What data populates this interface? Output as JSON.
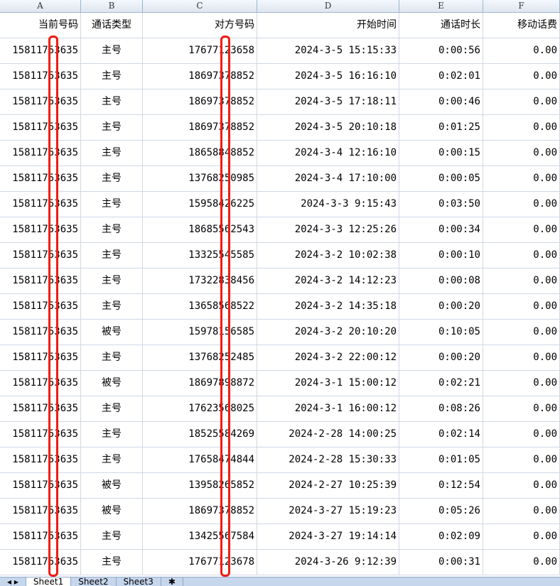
{
  "columns": [
    "A",
    "B",
    "C",
    "D",
    "E",
    "F"
  ],
  "headers": [
    "当前号码",
    "通话类型",
    "对方号码",
    "开始时间",
    "通话时长",
    "移动话费"
  ],
  "rows": [
    [
      "15811753635",
      "主号",
      "17677123658",
      "2024-3-5 15:15:33",
      "0:00:56",
      "0.00"
    ],
    [
      "15811753635",
      "主号",
      "18697378852",
      "2024-3-5 16:16:10",
      "0:02:01",
      "0.00"
    ],
    [
      "15811753635",
      "主号",
      "18697378852",
      "2024-3-5 17:18:11",
      "0:00:46",
      "0.00"
    ],
    [
      "15811753635",
      "主号",
      "18697378852",
      "2024-3-5 20:10:18",
      "0:01:25",
      "0.00"
    ],
    [
      "15811753635",
      "主号",
      "18658848852",
      "2024-3-4 12:16:10",
      "0:00:15",
      "0.00"
    ],
    [
      "15811753635",
      "主号",
      "13768250985",
      "2024-3-4 17:10:00",
      "0:00:05",
      "0.00"
    ],
    [
      "15811753635",
      "主号",
      "15958426225",
      "2024-3-3 9:15:43",
      "0:03:50",
      "0.00"
    ],
    [
      "15811753635",
      "主号",
      "18685562543",
      "2024-3-3 12:25:26",
      "0:00:34",
      "0.00"
    ],
    [
      "15811753635",
      "主号",
      "13325545585",
      "2024-3-2 10:02:38",
      "0:00:10",
      "0.00"
    ],
    [
      "15811753635",
      "主号",
      "17322838456",
      "2024-3-2 14:12:23",
      "0:00:08",
      "0.00"
    ],
    [
      "15811753635",
      "主号",
      "13658568522",
      "2024-3-2 14:35:18",
      "0:00:20",
      "0.00"
    ],
    [
      "15811753635",
      "被号",
      "15978156585",
      "2024-3-2 20:10:20",
      "0:10:05",
      "0.00"
    ],
    [
      "15811753635",
      "主号",
      "13768252485",
      "2024-3-2 22:00:12",
      "0:00:20",
      "0.00"
    ],
    [
      "15811753635",
      "被号",
      "18697898872",
      "2024-3-1 15:00:12",
      "0:02:21",
      "0.00"
    ],
    [
      "15811753635",
      "主号",
      "17623568025",
      "2024-3-1 16:00:12",
      "0:08:26",
      "0.00"
    ],
    [
      "15811753635",
      "主号",
      "18525584269",
      "2024-2-28 14:00:25",
      "0:02:14",
      "0.00"
    ],
    [
      "15811753635",
      "主号",
      "17658474844",
      "2024-2-28 15:30:33",
      "0:01:05",
      "0.00"
    ],
    [
      "15811753635",
      "被号",
      "13958265852",
      "2024-2-27 10:25:39",
      "0:12:54",
      "0.00"
    ],
    [
      "15811753635",
      "被号",
      "18697378852",
      "2024-3-27 15:19:23",
      "0:05:26",
      "0.00"
    ],
    [
      "15811753635",
      "主号",
      "13425567584",
      "2024-3-27 19:14:14",
      "0:02:09",
      "0.00"
    ],
    [
      "15811753635",
      "主号",
      "17677123678",
      "2024-3-26 9:12:39",
      "0:00:31",
      "0.00"
    ]
  ],
  "sheets": [
    "Sheet1",
    "Sheet2",
    "Sheet3"
  ],
  "colors": {
    "mask": "#f01c12"
  }
}
